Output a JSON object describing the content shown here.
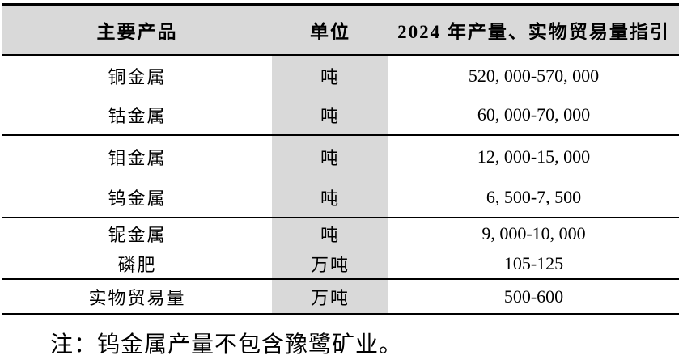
{
  "table": {
    "columns": [
      {
        "label": "主要产品"
      },
      {
        "label": "单位"
      },
      {
        "label": "2024 年产量、实物贸易量指引"
      }
    ],
    "rows": [
      {
        "product": "铜金属",
        "unit": "吨",
        "guidance": "520, 000-570, 000"
      },
      {
        "product": "钴金属",
        "unit": "吨",
        "guidance": "60, 000-70, 000"
      },
      {
        "product": "钼金属",
        "unit": "吨",
        "guidance": "12, 000-15, 000"
      },
      {
        "product": "钨金属",
        "unit": "吨",
        "guidance": "6, 500-7, 500"
      },
      {
        "product": "铌金属",
        "unit": "吨",
        "guidance": "9, 000-10, 000"
      },
      {
        "product": "磷肥",
        "unit": "万吨",
        "guidance": "105-125"
      },
      {
        "product": "实物贸易量",
        "unit": "万吨",
        "guidance": "500-600"
      }
    ]
  },
  "note": "注：钨金属产量不包含豫鹭矿业。",
  "colors": {
    "header_bg": "#d9d9d9",
    "unit_column_bg": "#d9d9d9",
    "border": "#000000",
    "text": "#000000"
  }
}
